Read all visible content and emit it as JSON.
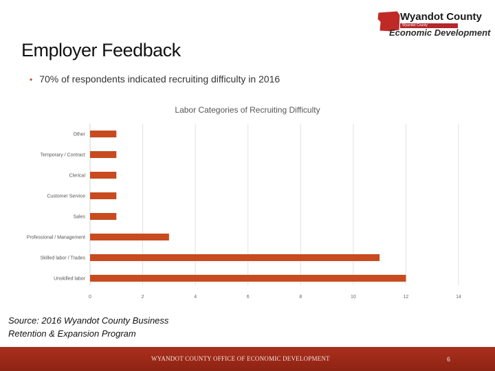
{
  "logo": {
    "name": "Wyandot County",
    "tagline": "Wyandot County",
    "department": "Economic Development"
  },
  "slide": {
    "title": "Employer Feedback",
    "bullet": "70% of respondents indicated recruiting difficulty in 2016",
    "source_line1": "Source: 2016 Wyandot County Business",
    "source_line2": "Retention & Expansion Program"
  },
  "footer": {
    "text": "WYANDOT COUNTY OFFICE OF ECONOMIC DEVELOPMENT",
    "page": "6"
  },
  "colors": {
    "bar": "#c84b1f",
    "accent": "#b3282d",
    "footer": "#9c2a18"
  },
  "chart_data": {
    "type": "bar",
    "orientation": "horizontal",
    "title": "Labor Categories of Recruiting Difficulty",
    "categories": [
      "Other",
      "Temporary / Contract",
      "Clerical",
      "Customer Service",
      "Sales",
      "Professional / Management",
      "Skilled labor / Trades",
      "Unskilled labor"
    ],
    "values": [
      1,
      1,
      1,
      1,
      1,
      3,
      11,
      12
    ],
    "xlim": [
      0,
      14
    ],
    "xticks": [
      0,
      2,
      4,
      6,
      8,
      10,
      12,
      14
    ],
    "grid": true,
    "legend": "none"
  }
}
